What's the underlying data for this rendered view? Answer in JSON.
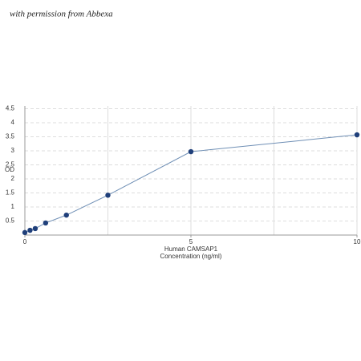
{
  "chart_data": {
    "type": "line",
    "watermark": "with permission from Abbexa",
    "xlabel": [
      "Human CAMSAP1",
      "Concentration (ng/ml)"
    ],
    "ylabel": "OD",
    "x": [
      0,
      0.156,
      0.312,
      0.625,
      1.25,
      2.5,
      5,
      10
    ],
    "series": [
      {
        "color": "#1f3f7a",
        "values": [
          0.09,
          0.17,
          0.23,
          0.43,
          0.71,
          1.42,
          2.97,
          3.57
        ]
      }
    ],
    "xlim": [
      0,
      10
    ],
    "xticks": [
      0,
      5,
      10
    ],
    "xgrid": [
      0,
      2.5,
      5,
      7.5,
      10
    ],
    "ylim": [
      0,
      4.6
    ],
    "yticks": [
      0.5,
      1,
      1.5,
      2,
      2.5,
      3,
      3.5,
      4,
      4.5
    ],
    "grid": true
  }
}
